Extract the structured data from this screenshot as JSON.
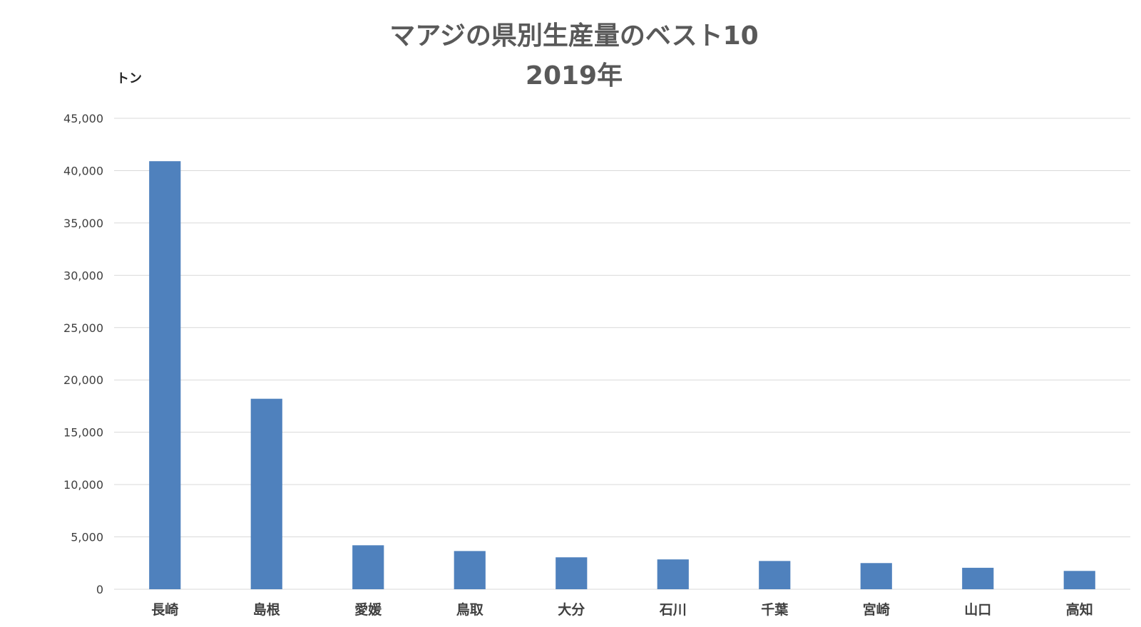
{
  "chart_data": {
    "type": "bar",
    "title": "マアジの県別生産量のベスト10",
    "subtitle": "2019年",
    "ylabel": "トン",
    "xlabel": "",
    "categories": [
      "長崎",
      "島根",
      "愛媛",
      "鳥取",
      "大分",
      "石川",
      "千葉",
      "宮崎",
      "山口",
      "高知"
    ],
    "values": [
      40900,
      18200,
      4200,
      3650,
      3050,
      2850,
      2700,
      2500,
      2050,
      1750
    ],
    "ylim": [
      0,
      45000
    ],
    "yticks": [
      0,
      5000,
      10000,
      15000,
      20000,
      25000,
      30000,
      35000,
      40000,
      45000
    ],
    "ytick_labels": [
      "0",
      "5,000",
      "10,000",
      "15,000",
      "20,000",
      "25,000",
      "30,000",
      "35,000",
      "40,000",
      "45,000"
    ],
    "grid": true,
    "legend": "none",
    "bar_color": "#4f81bd"
  }
}
